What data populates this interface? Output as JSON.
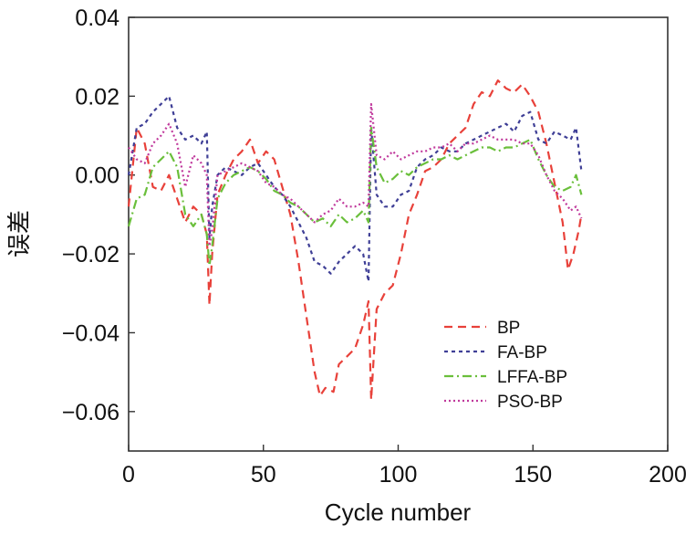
{
  "chart_data": {
    "type": "line",
    "title": "",
    "xlabel": "Cycle number",
    "ylabel": "误差",
    "xlim": [
      0,
      200
    ],
    "ylim": [
      -0.07,
      0.04
    ],
    "x_ticks": [
      0,
      50,
      100,
      150,
      200
    ],
    "x_tick_labels": [
      "0",
      "50",
      "100",
      "150",
      "200"
    ],
    "y_ticks": [
      0.04,
      0.02,
      0.0,
      -0.02,
      -0.04,
      -0.06
    ],
    "y_tick_labels": [
      "0.04",
      "0.02",
      "0.00",
      "−0.02",
      "−0.04",
      "−0.06"
    ],
    "legend_position": "lower-right",
    "series": [
      {
        "name": "BP",
        "color": "#e8413a",
        "dash": "9,6",
        "x": [
          0,
          3,
          6,
          9,
          12,
          15,
          18,
          21,
          24,
          27,
          29,
          30,
          31,
          33,
          36,
          39,
          42,
          45,
          48,
          51,
          54,
          57,
          60,
          63,
          66,
          69,
          71,
          73,
          76,
          78,
          81,
          84,
          87,
          89,
          90,
          92,
          95,
          98,
          101,
          104,
          107,
          110,
          113,
          116,
          119,
          122,
          125,
          128,
          131,
          134,
          137,
          140,
          143,
          146,
          149,
          152,
          155,
          158,
          161,
          163,
          165,
          167,
          168
        ],
        "values": [
          -0.008,
          0.012,
          0.008,
          -0.003,
          -0.004,
          0.0,
          -0.006,
          -0.012,
          -0.008,
          -0.01,
          -0.015,
          -0.033,
          -0.02,
          -0.005,
          0.0,
          0.004,
          0.006,
          0.009,
          0.003,
          0.006,
          0.004,
          -0.003,
          -0.01,
          -0.022,
          -0.036,
          -0.05,
          -0.056,
          -0.054,
          -0.055,
          -0.048,
          -0.046,
          -0.044,
          -0.038,
          -0.032,
          -0.057,
          -0.034,
          -0.03,
          -0.028,
          -0.02,
          -0.01,
          -0.005,
          0.001,
          0.002,
          0.004,
          0.008,
          0.01,
          0.012,
          0.018,
          0.021,
          0.02,
          0.024,
          0.022,
          0.021,
          0.023,
          0.02,
          0.016,
          0.008,
          -0.002,
          -0.012,
          -0.024,
          -0.02,
          -0.014,
          -0.01
        ]
      },
      {
        "name": "FA-BP",
        "color": "#3f3f96",
        "dash": "4,4",
        "x": [
          0,
          3,
          6,
          9,
          12,
          15,
          18,
          21,
          24,
          27,
          29,
          30,
          31,
          33,
          36,
          39,
          42,
          45,
          48,
          51,
          54,
          57,
          60,
          63,
          66,
          69,
          72,
          75,
          78,
          81,
          84,
          87,
          89,
          90,
          92,
          95,
          98,
          101,
          104,
          107,
          110,
          113,
          116,
          119,
          122,
          125,
          128,
          131,
          134,
          137,
          140,
          143,
          146,
          149,
          152,
          155,
          158,
          161,
          164,
          166,
          168
        ],
        "values": [
          0.0,
          0.012,
          0.013,
          0.016,
          0.018,
          0.02,
          0.012,
          0.009,
          0.01,
          0.008,
          0.011,
          -0.016,
          -0.008,
          0.0,
          0.002,
          0.001,
          0.0,
          0.002,
          0.003,
          0.0,
          -0.003,
          -0.005,
          -0.008,
          -0.012,
          -0.016,
          -0.022,
          -0.023,
          -0.025,
          -0.022,
          -0.02,
          -0.018,
          -0.02,
          -0.027,
          0.012,
          -0.005,
          -0.008,
          -0.008,
          -0.005,
          -0.004,
          0.002,
          0.004,
          0.005,
          0.007,
          0.006,
          0.006,
          0.008,
          0.009,
          0.01,
          0.011,
          0.012,
          0.013,
          0.011,
          0.015,
          0.016,
          0.009,
          0.008,
          0.011,
          0.01,
          0.009,
          0.012,
          0.001
        ]
      },
      {
        "name": "LFFA-BP",
        "color": "#6abf3b",
        "dash": "10,4,2,4",
        "x": [
          0,
          3,
          6,
          9,
          12,
          15,
          18,
          21,
          24,
          27,
          29,
          30,
          31,
          33,
          36,
          39,
          42,
          45,
          48,
          51,
          54,
          57,
          60,
          63,
          66,
          69,
          72,
          75,
          78,
          81,
          84,
          87,
          89,
          90,
          92,
          95,
          98,
          101,
          104,
          107,
          110,
          113,
          116,
          119,
          122,
          125,
          128,
          131,
          134,
          137,
          140,
          143,
          146,
          149,
          152,
          155,
          158,
          161,
          164,
          166,
          168
        ],
        "values": [
          -0.013,
          -0.006,
          -0.005,
          0.002,
          0.004,
          0.006,
          0.002,
          -0.01,
          -0.013,
          -0.01,
          -0.015,
          -0.023,
          -0.018,
          -0.006,
          -0.002,
          0.0,
          0.001,
          0.002,
          0.001,
          -0.001,
          -0.004,
          -0.005,
          -0.007,
          -0.008,
          -0.01,
          -0.012,
          -0.011,
          -0.013,
          -0.01,
          -0.012,
          -0.011,
          -0.009,
          -0.012,
          0.012,
          0.002,
          -0.002,
          -0.001,
          0.001,
          0.0,
          0.002,
          0.003,
          0.004,
          0.004,
          0.005,
          0.004,
          0.005,
          0.006,
          0.007,
          0.007,
          0.006,
          0.007,
          0.007,
          0.008,
          0.009,
          0.004,
          0.0,
          -0.003,
          -0.004,
          -0.003,
          0.0,
          -0.005
        ]
      },
      {
        "name": "PSO-BP",
        "color": "#c0399c",
        "dash": "2,3",
        "x": [
          0,
          3,
          6,
          9,
          12,
          15,
          18,
          21,
          24,
          27,
          29,
          30,
          31,
          33,
          36,
          39,
          42,
          45,
          48,
          51,
          54,
          57,
          60,
          63,
          66,
          69,
          72,
          75,
          78,
          81,
          84,
          87,
          89,
          90,
          92,
          95,
          98,
          101,
          104,
          107,
          110,
          113,
          116,
          119,
          122,
          125,
          128,
          131,
          134,
          137,
          140,
          143,
          146,
          149,
          152,
          155,
          158,
          161,
          164,
          166,
          168
        ],
        "values": [
          0.007,
          0.004,
          0.003,
          0.008,
          0.01,
          0.013,
          0.008,
          -0.003,
          0.005,
          0.003,
          0.0,
          -0.018,
          -0.014,
          0.0,
          0.001,
          0.002,
          0.003,
          0.002,
          0.001,
          -0.002,
          -0.003,
          -0.005,
          -0.006,
          -0.008,
          -0.01,
          -0.012,
          -0.01,
          -0.009,
          -0.006,
          -0.008,
          -0.008,
          -0.007,
          -0.008,
          0.018,
          0.005,
          0.004,
          0.006,
          0.004,
          0.005,
          0.006,
          0.006,
          0.007,
          0.007,
          0.008,
          0.006,
          0.008,
          0.008,
          0.009,
          0.01,
          0.009,
          0.009,
          0.009,
          0.008,
          0.008,
          0.005,
          0.0,
          -0.004,
          -0.006,
          -0.009,
          -0.008,
          -0.011
        ]
      }
    ]
  }
}
